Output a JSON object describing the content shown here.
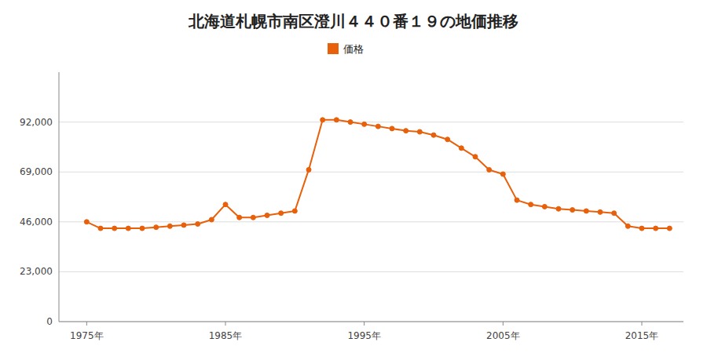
{
  "chart_data": {
    "type": "line",
    "title": "北海道札幌市南区澄川４４０番１９の地価推移",
    "x": [
      1975,
      1976,
      1977,
      1978,
      1979,
      1980,
      1981,
      1982,
      1983,
      1984,
      1985,
      1986,
      1987,
      1988,
      1989,
      1990,
      1991,
      1992,
      1993,
      1994,
      1995,
      1996,
      1997,
      1998,
      1999,
      2000,
      2001,
      2002,
      2003,
      2004,
      2005,
      2006,
      2007,
      2008,
      2009,
      2010,
      2011,
      2012,
      2013,
      2014,
      2015,
      2016,
      2017
    ],
    "series": [
      {
        "name": "価格",
        "color": "#E8600A",
        "marker": "circle",
        "values": [
          46000,
          43000,
          43000,
          43000,
          43000,
          43500,
          44000,
          44500,
          45000,
          47000,
          54000,
          48000,
          48000,
          49000,
          50000,
          51000,
          70000,
          93000,
          93000,
          92000,
          91000,
          90000,
          89000,
          88000,
          87500,
          86000,
          84000,
          80000,
          76000,
          70000,
          68000,
          56000,
          54000,
          53000,
          52000,
          51500,
          51000,
          50500,
          50000,
          44000,
          43000,
          43000,
          43000
        ]
      }
    ],
    "xlim": [
      1973,
      2018
    ],
    "xticks": [
      {
        "value": 1975,
        "label": "1975年"
      },
      {
        "value": 1985,
        "label": "1985年"
      },
      {
        "value": 1995,
        "label": "1995年"
      },
      {
        "value": 2005,
        "label": "2005年"
      },
      {
        "value": 2015,
        "label": "2015年"
      }
    ],
    "ylim": [
      0,
      115000
    ],
    "yticks": [
      0,
      {
        "value": 23000,
        "label": "23,000"
      },
      {
        "value": 46000,
        "label": "46,000"
      },
      {
        "value": 69000,
        "label": "69,000"
      },
      {
        "value": 92000,
        "label": "92,000"
      }
    ],
    "grid": true,
    "legend": "top"
  }
}
